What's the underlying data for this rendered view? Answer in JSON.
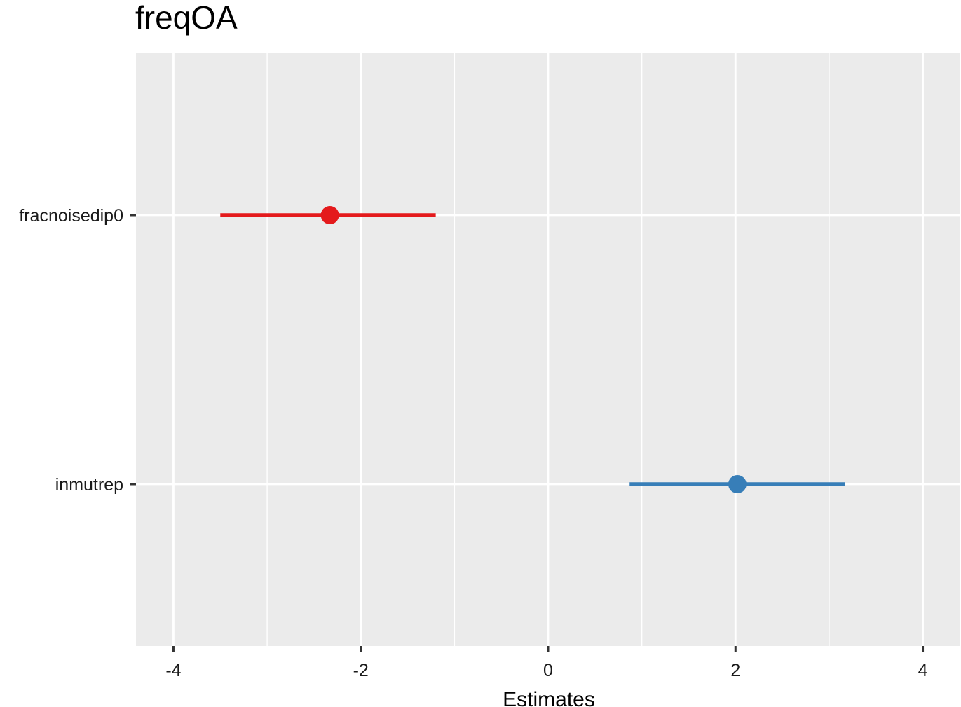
{
  "chart_data": {
    "type": "forest",
    "title": "freqOA",
    "xlabel": "Estimates",
    "ylabel": "",
    "xlim": [
      -4.4,
      4.4
    ],
    "x_ticks": [
      -4,
      -2,
      0,
      2,
      4
    ],
    "x_tick_labels": [
      "-4",
      "-2",
      "0",
      "2",
      "4"
    ],
    "grid": true,
    "legend": "none",
    "panel_background": "#EBEBEB",
    "grid_color": "#FFFFFF",
    "terms": [
      {
        "label": "fracnoisedip0",
        "estimate": -2.33,
        "ci_low": -3.5,
        "ci_high": -1.2,
        "color": "#E41A1C"
      },
      {
        "label": "inmutrep",
        "estimate": 2.02,
        "ci_low": 0.87,
        "ci_high": 3.17,
        "color": "#377EB8"
      }
    ]
  }
}
